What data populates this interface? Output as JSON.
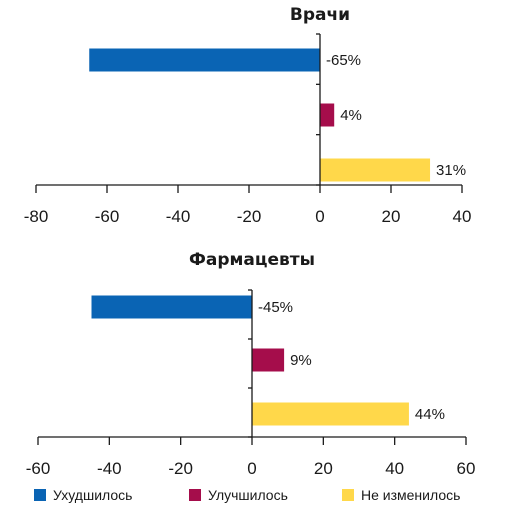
{
  "legend": [
    {
      "label": "Ухудшилось",
      "color": "#0a64b4"
    },
    {
      "label": "Улучшилось",
      "color": "#a50d4b"
    },
    {
      "label": "Не изменилось",
      "color": "#ffd84a"
    }
  ],
  "chart_data": [
    {
      "type": "bar",
      "orientation": "horizontal",
      "title": "Врачи",
      "categories": [
        "Ухудшилось",
        "Улучшилось",
        "Не изменилось"
      ],
      "values": [
        -65,
        4,
        31
      ],
      "value_labels": [
        "-65%",
        "4%",
        "31%"
      ],
      "colors": [
        "#0a64b4",
        "#a50d4b",
        "#ffd84a"
      ],
      "xlim": [
        -80,
        40
      ],
      "xticks": [
        "-80",
        "-60",
        "-40",
        "-20",
        "0",
        "20",
        "40"
      ],
      "grid": false
    },
    {
      "type": "bar",
      "orientation": "horizontal",
      "title": "Фармацевты",
      "categories": [
        "Ухудшилось",
        "Улучшилось",
        "Не изменилось"
      ],
      "values": [
        -45,
        9,
        44
      ],
      "value_labels": [
        "-45%",
        "9%",
        "44%"
      ],
      "colors": [
        "#0a64b4",
        "#a50d4b",
        "#ffd84a"
      ],
      "xlim": [
        -60,
        60
      ],
      "xticks": [
        "-60",
        "-40",
        "-20",
        "0",
        "20",
        "40",
        "60"
      ],
      "grid": false
    }
  ]
}
